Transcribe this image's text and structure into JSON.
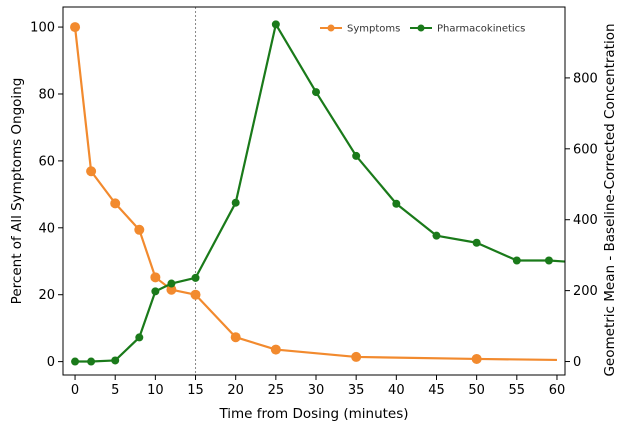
{
  "chart_data": {
    "type": "line",
    "xlabel": "Time from Dosing (minutes)",
    "ylabel_left": "Percent of All Symptoms Ongoing",
    "ylabel_right": "Geometric Mean - Baseline-Corrected Concentration",
    "xlim": [
      -1.5,
      61
    ],
    "ylim_left": [
      -4,
      106
    ],
    "ylim_right": [
      -38,
      1000
    ],
    "x_ticks": [
      0,
      5,
      10,
      15,
      20,
      25,
      30,
      35,
      40,
      45,
      50,
      55,
      60
    ],
    "y_ticks_left": [
      0,
      20,
      40,
      60,
      80,
      100
    ],
    "y_ticks_right": [
      0,
      200,
      400,
      600,
      800
    ],
    "reference_line_x": 15,
    "legend_position": "top-right",
    "series": [
      {
        "name": "Symptoms",
        "axis": "left",
        "color": "#f28a2e",
        "x": [
          0,
          2,
          5,
          8,
          10,
          12,
          15,
          20,
          25,
          35,
          50,
          60
        ],
        "y": [
          100,
          56.9,
          47.3,
          39.4,
          25.2,
          21.5,
          20.0,
          7.3,
          3.6,
          1.4,
          0.8,
          0.5
        ],
        "marker_shown": [
          true,
          true,
          true,
          true,
          true,
          true,
          true,
          true,
          true,
          true,
          true,
          false
        ]
      },
      {
        "name": "Pharmacokinetics",
        "axis": "right",
        "color": "#1a7a1a",
        "x": [
          0,
          2,
          5,
          8,
          10,
          12,
          15,
          20,
          25,
          30,
          35,
          40,
          45,
          50,
          55,
          59,
          61
        ],
        "y": [
          0,
          0,
          3,
          68,
          198,
          220,
          236,
          448,
          951,
          760,
          580,
          445,
          355,
          335,
          285,
          285,
          282
        ],
        "marker_shown": [
          true,
          true,
          true,
          true,
          true,
          true,
          true,
          true,
          true,
          true,
          true,
          true,
          true,
          true,
          true,
          true,
          false
        ]
      }
    ]
  }
}
